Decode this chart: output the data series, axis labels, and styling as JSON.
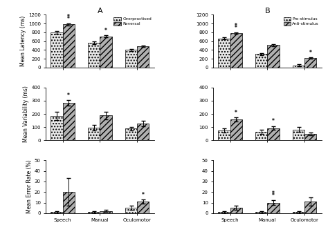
{
  "title_A": "A",
  "title_B": "B",
  "categories": [
    "Speech",
    "Manual",
    "Oculomotor"
  ],
  "panel_A": {
    "legend": [
      "Overpractised",
      "Reversal"
    ],
    "latency": {
      "bar1": [
        800,
        560,
        400
      ],
      "bar2": [
        980,
        710,
        490
      ],
      "err1": [
        30,
        25,
        20
      ],
      "err2": [
        20,
        25,
        15
      ],
      "stars_above_bar2": [
        "**",
        "*",
        ""
      ],
      "stars_above_bar1": [
        "",
        "",
        ""
      ],
      "ylim": [
        0,
        1200
      ],
      "yticks": [
        0,
        200,
        400,
        600,
        800,
        1000,
        1200
      ],
      "ylabel": "Mean Latency (ms)"
    },
    "variability": {
      "bar1": [
        185,
        95,
        88
      ],
      "bar2": [
        283,
        188,
        128
      ],
      "err1": [
        30,
        20,
        15
      ],
      "err2": [
        20,
        30,
        20
      ],
      "stars_above_bar2": [
        "*",
        "",
        ""
      ],
      "stars_above_bar1": [
        "",
        "",
        ""
      ],
      "ylim": [
        0,
        400
      ],
      "yticks": [
        0,
        100,
        200,
        300,
        400
      ],
      "ylabel": "Mean Variability (ms)"
    },
    "error_rate": {
      "bar1": [
        1,
        1,
        5
      ],
      "bar2": [
        20,
        2,
        11
      ],
      "err1": [
        1,
        1,
        2
      ],
      "err2": [
        13,
        1,
        2
      ],
      "stars_above_bar2": [
        "",
        "",
        "*"
      ],
      "stars_above_bar1": [
        "",
        "",
        ""
      ],
      "ylim": [
        0,
        50
      ],
      "yticks": [
        0,
        10,
        20,
        30,
        40,
        50
      ],
      "ylabel": "Mean Error Rate (%)"
    }
  },
  "panel_B": {
    "legend": [
      "Pro-stimulus",
      "Anti-stimulus"
    ],
    "latency": {
      "bar1": [
        660,
        305,
        50
      ],
      "bar2": [
        775,
        510,
        215
      ],
      "err1": [
        20,
        25,
        25
      ],
      "err2": [
        15,
        20,
        20
      ],
      "stars_above_bar2": [
        "**",
        "",
        "*"
      ],
      "stars_above_bar1": [
        "",
        "",
        ""
      ],
      "ylim": [
        0,
        1200
      ],
      "yticks": [
        0,
        200,
        400,
        600,
        800,
        1000,
        1200
      ],
      "ylabel": "Mean Latency (ms)"
    },
    "variability": {
      "bar1": [
        75,
        65,
        82
      ],
      "bar2": [
        158,
        93,
        48
      ],
      "err1": [
        15,
        15,
        20
      ],
      "err2": [
        15,
        15,
        10
      ],
      "stars_above_bar2": [
        "*",
        "*",
        ""
      ],
      "stars_above_bar1": [
        "",
        "",
        ""
      ],
      "ylim": [
        0,
        400
      ],
      "yticks": [
        0,
        100,
        200,
        300,
        400
      ],
      "ylabel": "Mean Variability (ms)"
    },
    "error_rate": {
      "bar1": [
        1,
        1,
        1
      ],
      "bar2": [
        5,
        10,
        11
      ],
      "err1": [
        1,
        1,
        1
      ],
      "err2": [
        2,
        2,
        4
      ],
      "stars_above_bar2": [
        "",
        "**",
        ""
      ],
      "stars_above_bar1": [
        "",
        "",
        ""
      ],
      "ylim": [
        0,
        50
      ],
      "yticks": [
        0,
        10,
        20,
        30,
        40,
        50
      ],
      "ylabel": "Mean Error Rate (%)"
    }
  },
  "bar_width": 0.32,
  "color1": "#e8e8e8",
  "color2": "#b0b0b0",
  "hatch1": "....",
  "hatch2": "////",
  "edgecolor": "black"
}
